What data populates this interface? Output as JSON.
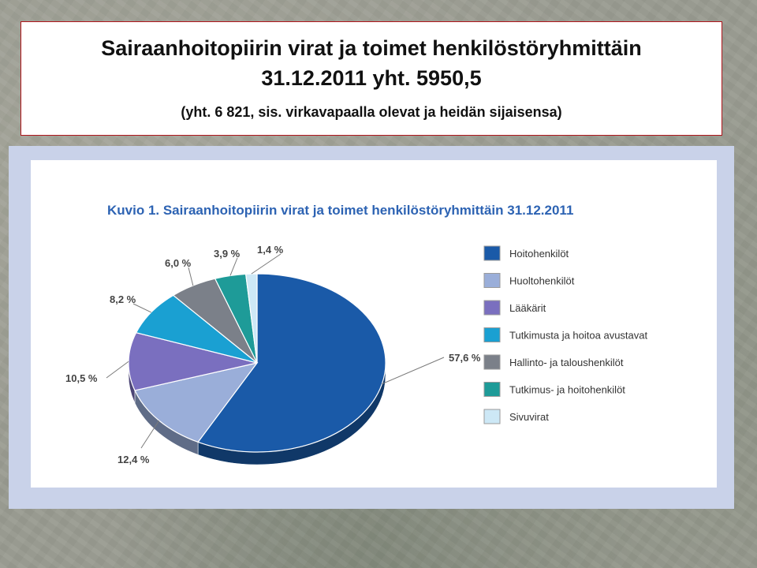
{
  "slide": {
    "title_line1": "Sairaanhoitopiirin virat ja toimet henkilöstöryhmittäin",
    "title_line2": "31.12.2011 yht. 5950,5",
    "subtitle": "(yht. 6 821, sis. virkavapaalla olevat ja heidän sijaisensa)"
  },
  "chart_data": {
    "type": "pie",
    "title": "Kuvio 1. Sairaanhoitopiirin virat ja toimet henkilöstöryhmittäin 31.12.2011",
    "legend_position": "right",
    "slices": [
      {
        "name": "Hoitohenkilöt",
        "value": 57.6,
        "label": "57,6 %",
        "color": "#1a5aa8"
      },
      {
        "name": "Huoltohenkilöt",
        "value": 12.4,
        "label": "12,4 %",
        "color": "#9aaed9"
      },
      {
        "name": "Lääkärit",
        "value": 10.5,
        "label": "10,5 %",
        "color": "#7a6fbf"
      },
      {
        "name": "Tutkimusta ja hoitoa avustavat",
        "value": 8.2,
        "label": "8,2 %",
        "color": "#1aa0d2"
      },
      {
        "name": "Hallinto- ja taloushenkilöt",
        "value": 6.0,
        "label": "6,0 %",
        "color": "#7b8089"
      },
      {
        "name": "Tutkimus- ja hoitohenkilöt",
        "value": 3.9,
        "label": "3,9 %",
        "color": "#1e9b98"
      },
      {
        "name": "Sivuvirat",
        "value": 1.4,
        "label": "1,4 %",
        "color": "#cde8f6"
      }
    ]
  }
}
